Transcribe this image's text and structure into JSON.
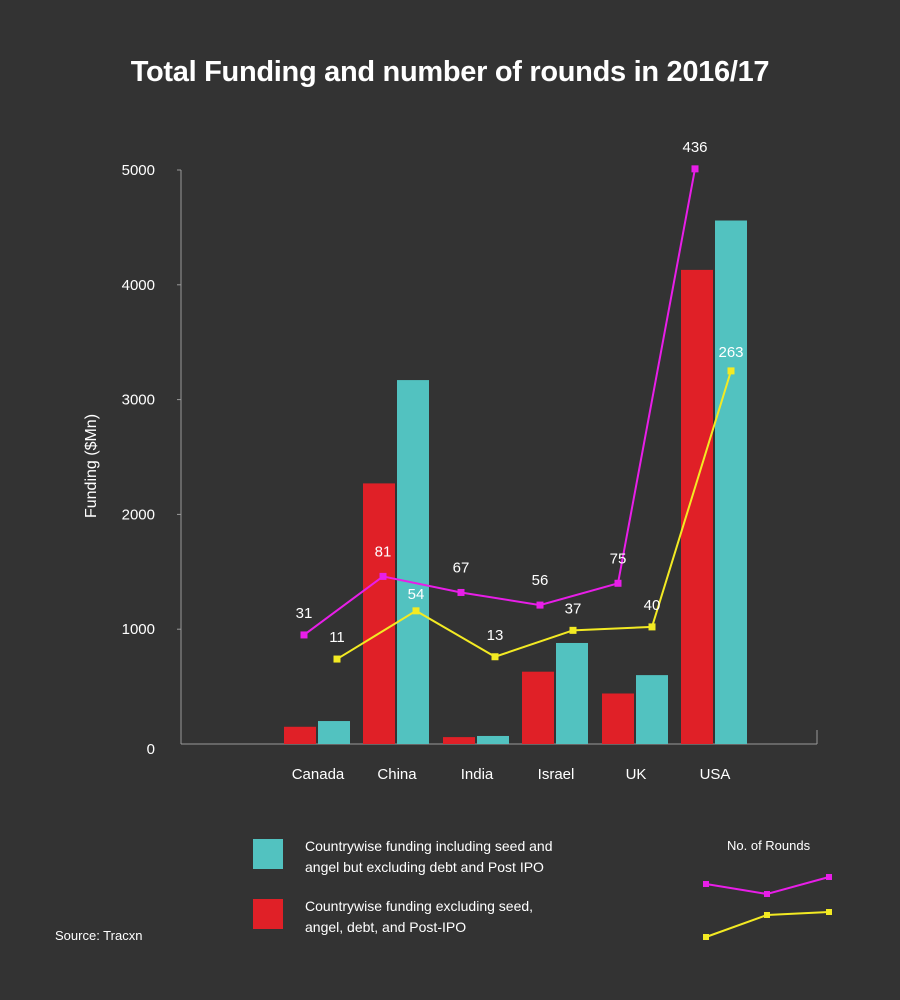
{
  "chart_data": {
    "type": "bar",
    "title": "Total Funding and number of rounds in 2016/17",
    "ylabel": "Funding ($Mn)",
    "xlabel": "",
    "ylim": [
      0,
      5000
    ],
    "yticks": [
      0,
      1000,
      2000,
      3000,
      4000,
      5000
    ],
    "categories": [
      "Canada",
      "China",
      "India",
      "Israel",
      "UK",
      "USA"
    ],
    "series": [
      {
        "name": "Countrywise funding excluding seed, angel, debt, and Post-IPO",
        "color": "#e02027",
        "values": [
          150,
          2270,
          60,
          630,
          440,
          4130
        ]
      },
      {
        "name": "Countrywise funding including seed and angel but excluding debt and Post IPO",
        "color": "#52c2c0",
        "values": [
          200,
          3170,
          70,
          880,
          600,
          4560
        ]
      }
    ],
    "lines": [
      {
        "name": "No. of Rounds (magenta)",
        "color": "#e81ee8",
        "values": [
          950,
          1460,
          1320,
          1210,
          1400,
          5010
        ],
        "labels": [
          "31",
          "81",
          "67",
          "56",
          "75",
          "436"
        ]
      },
      {
        "name": "No. of Rounds (yellow)",
        "color": "#f3ea23",
        "values": [
          740,
          1160,
          760,
          990,
          1020,
          3250
        ],
        "labels": [
          "11",
          "54",
          "13",
          "37",
          "40",
          "263"
        ]
      }
    ],
    "legend": {
      "rounds_title": "No. of Rounds"
    }
  },
  "source": "Source: Tracxn"
}
